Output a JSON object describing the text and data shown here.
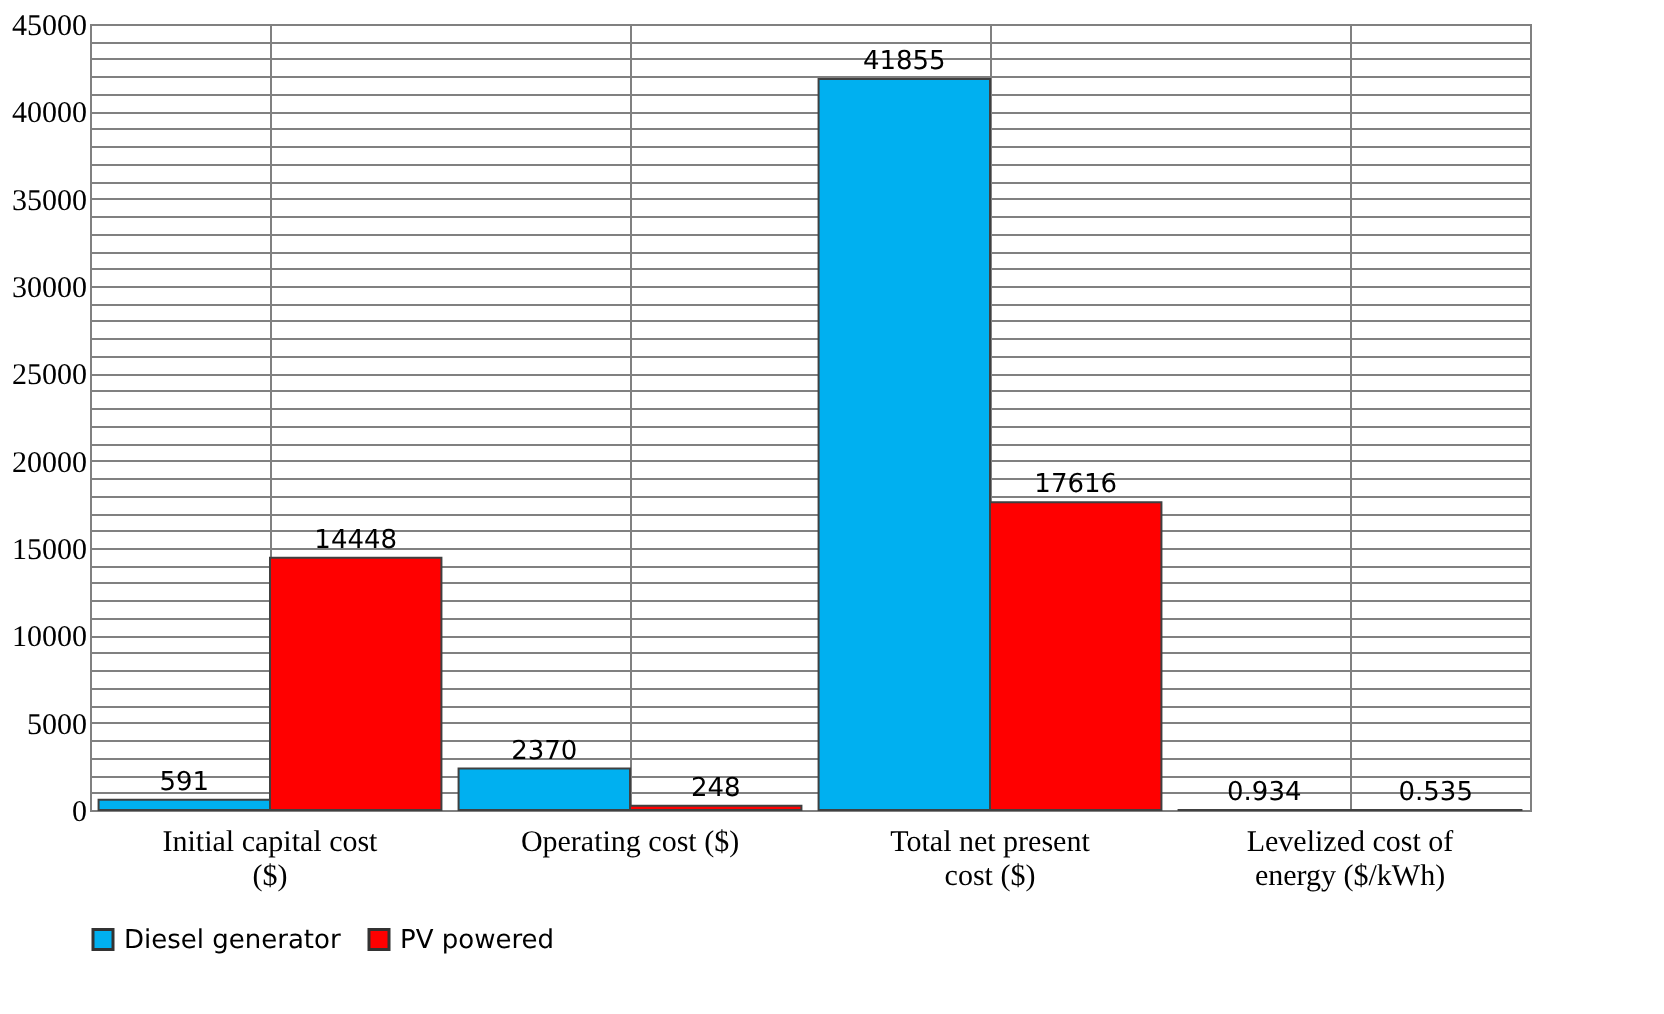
{
  "chart_data": {
    "type": "bar",
    "categories": [
      "Initial capital cost ($)",
      "Operating cost ($)",
      "Total net present cost ($)",
      "Levelized cost of energy ($/kWh)"
    ],
    "series": [
      {
        "name": "Diesel generator",
        "color": "#00b0f0",
        "values": [
          591,
          2370,
          41855,
          0.934
        ]
      },
      {
        "name": "PV powered",
        "color": "#ff0000",
        "values": [
          14448,
          248,
          17616,
          0.535
        ]
      }
    ],
    "ylim": [
      0,
      45000
    ],
    "yticks": [
      0,
      {
        "value": 1000,
        "label": null
      },
      {
        "value": 2000,
        "label": null
      },
      {
        "value": 3000,
        "label": null
      },
      {
        "value": 4000,
        "label": null
      },
      5000,
      {
        "value": 6000,
        "label": null
      },
      {
        "value": 7000,
        "label": null
      },
      {
        "value": 8000,
        "label": null
      },
      {
        "value": 9000,
        "label": null
      },
      10000,
      {
        "value": 11000,
        "label": null
      },
      {
        "value": 12000,
        "label": null
      },
      {
        "value": 13000,
        "label": null
      },
      {
        "value": 14000,
        "label": null
      },
      15000,
      {
        "value": 16000,
        "label": null
      },
      {
        "value": 17000,
        "label": null
      },
      {
        "value": 18000,
        "label": null
      },
      {
        "value": 19000,
        "label": null
      },
      20000,
      {
        "value": 21000,
        "label": null
      },
      {
        "value": 22000,
        "label": null
      },
      {
        "value": 23000,
        "label": null
      },
      {
        "value": 24000,
        "label": null
      },
      25000,
      {
        "value": 26000,
        "label": null
      },
      {
        "value": 27000,
        "label": null
      },
      {
        "value": 28000,
        "label": null
      },
      {
        "value": 29000,
        "label": null
      },
      30000,
      {
        "value": 31000,
        "label": null
      },
      {
        "value": 32000,
        "label": null
      },
      {
        "value": 33000,
        "label": null
      },
      {
        "value": 34000,
        "label": null
      },
      35000,
      {
        "value": 36000,
        "label": null
      },
      {
        "value": 37000,
        "label": null
      },
      {
        "value": 38000,
        "label": null
      },
      {
        "value": 39000,
        "label": null
      },
      40000,
      {
        "value": 41000,
        "label": null
      },
      {
        "value": 42000,
        "label": null
      },
      {
        "value": 43000,
        "label": null
      },
      {
        "value": 44000,
        "label": null
      },
      45000
    ],
    "grid": true,
    "legend": "bottom",
    "data_labels": true
  }
}
